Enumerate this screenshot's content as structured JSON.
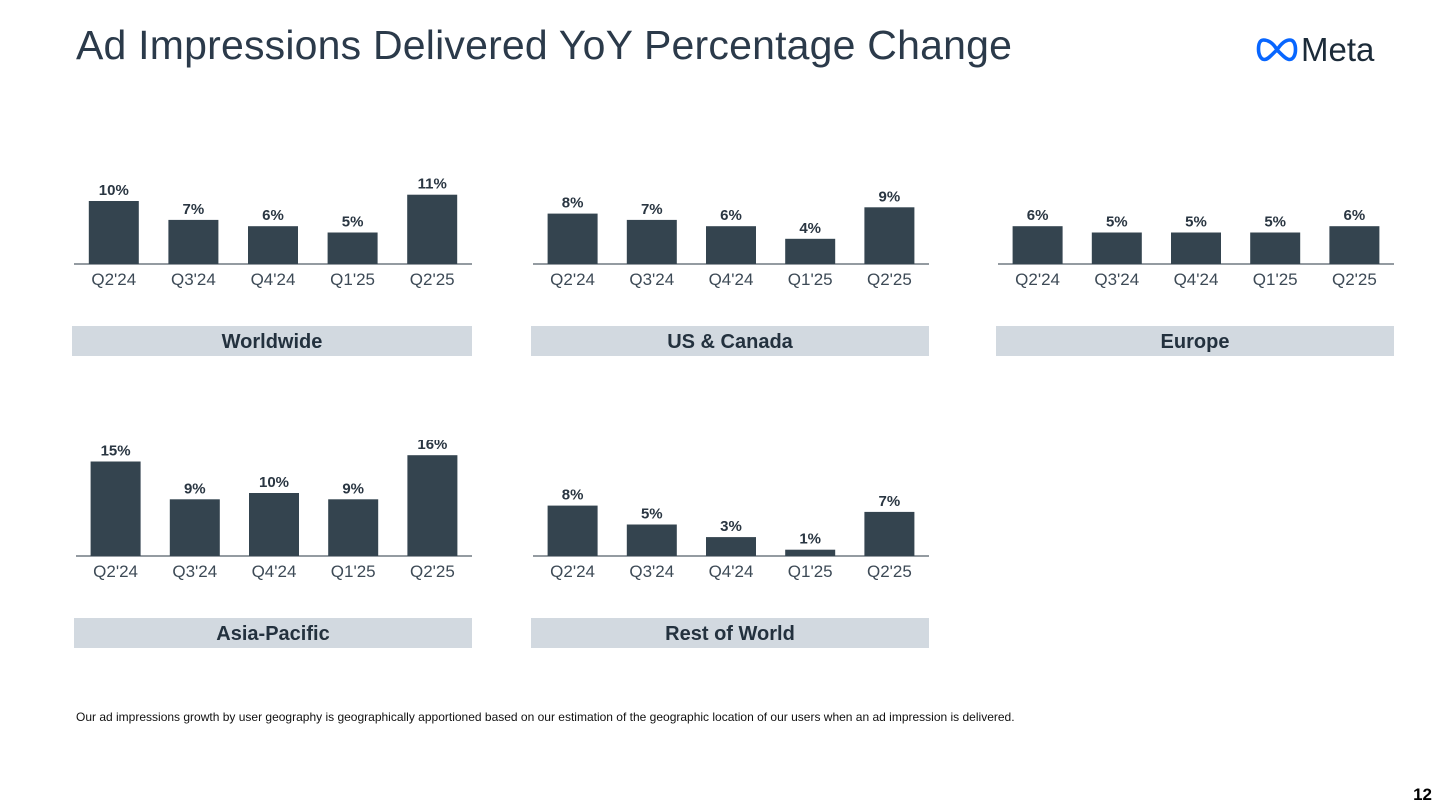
{
  "page": {
    "title": "Ad Impressions Delivered YoY Percentage Change",
    "logo_text": "Meta",
    "footnote": "Our ad impressions growth by user geography is geographically apportioned based on our estimation of the geographic location of our users when an ad impression is delivered.",
    "page_number": "12"
  },
  "colors": {
    "bar": "#34444f",
    "label_band": "#d2d9e0",
    "title_text": "#2b3a4a",
    "tick_text": "#3d4a56",
    "logo_blue": "#0866ff"
  },
  "chart_data": [
    {
      "type": "bar",
      "title": "Worldwide",
      "categories": [
        "Q2'24",
        "Q3'24",
        "Q4'24",
        "Q1'25",
        "Q2'25"
      ],
      "values": [
        10,
        7,
        6,
        5,
        11
      ],
      "value_labels": [
        "10%",
        "7%",
        "6%",
        "5%",
        "11%"
      ],
      "unit": "%",
      "ylim": [
        0,
        16
      ]
    },
    {
      "type": "bar",
      "title": "US & Canada",
      "categories": [
        "Q2'24",
        "Q3'24",
        "Q4'24",
        "Q1'25",
        "Q2'25"
      ],
      "values": [
        8,
        7,
        6,
        4,
        9
      ],
      "value_labels": [
        "8%",
        "7%",
        "6%",
        "4%",
        "9%"
      ],
      "unit": "%",
      "ylim": [
        0,
        16
      ]
    },
    {
      "type": "bar",
      "title": "Europe",
      "categories": [
        "Q2'24",
        "Q3'24",
        "Q4'24",
        "Q1'25",
        "Q2'25"
      ],
      "values": [
        6,
        5,
        5,
        5,
        6
      ],
      "value_labels": [
        "6%",
        "5%",
        "5%",
        "5%",
        "6%"
      ],
      "unit": "%",
      "ylim": [
        0,
        16
      ]
    },
    {
      "type": "bar",
      "title": "Asia-Pacific",
      "categories": [
        "Q2'24",
        "Q3'24",
        "Q4'24",
        "Q1'25",
        "Q2'25"
      ],
      "values": [
        15,
        9,
        10,
        9,
        16
      ],
      "value_labels": [
        "15%",
        "9%",
        "10%",
        "9%",
        "16%"
      ],
      "unit": "%",
      "ylim": [
        0,
        16
      ]
    },
    {
      "type": "bar",
      "title": "Rest of World",
      "categories": [
        "Q2'24",
        "Q3'24",
        "Q4'24",
        "Q1'25",
        "Q2'25"
      ],
      "values": [
        8,
        5,
        3,
        1,
        7
      ],
      "value_labels": [
        "8%",
        "5%",
        "3%",
        "1%",
        "7%"
      ],
      "unit": "%",
      "ylim": [
        0,
        16
      ]
    }
  ]
}
